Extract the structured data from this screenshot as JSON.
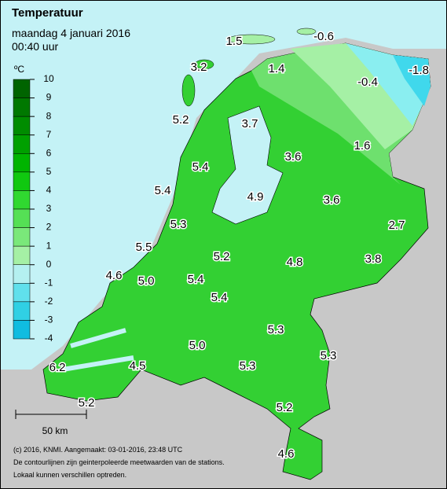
{
  "header": {
    "title": "Temperatuur",
    "date": "maandag 4 januari 2016",
    "time": "00:40 uur"
  },
  "legend": {
    "unit": "ºC",
    "ticks": [
      10,
      9,
      8,
      7,
      6,
      5,
      4,
      3,
      2,
      1,
      0,
      -1,
      -2,
      -3,
      -4
    ],
    "colors": [
      "#006400",
      "#007800",
      "#008c00",
      "#00a000",
      "#00b400",
      "#10c810",
      "#30d830",
      "#55e055",
      "#7ae87a",
      "#a5f0a5",
      "#b4f0f0",
      "#60e0ec",
      "#30d0e4",
      "#10bce0"
    ]
  },
  "stations": [
    "1.5",
    "-0.6",
    "3.2",
    "1.4",
    "-0.4",
    "-1.8",
    "5.2",
    "3.7",
    "1.6",
    "5.4",
    "3.6",
    "5.4",
    "4.9",
    "3.6",
    "2.7",
    "5.3",
    "5.5",
    "5.2",
    "3.8",
    "4.8",
    "4.6",
    "5.0",
    "5.4",
    "5.4",
    "5.3",
    "5.0",
    "5.3",
    "4.5",
    "5.3",
    "6.2",
    "5.2",
    "5.2",
    "4.6"
  ],
  "scale": "50 km",
  "footer": [
    "(c) 2016, KNMI. Aangemaakt: 03-01-2016, 23:48 UTC",
    "De contourlijnen zijn geinterpoleerde meetwaarden van de stations.",
    "Lokaal kunnen verschillen optreden."
  ]
}
